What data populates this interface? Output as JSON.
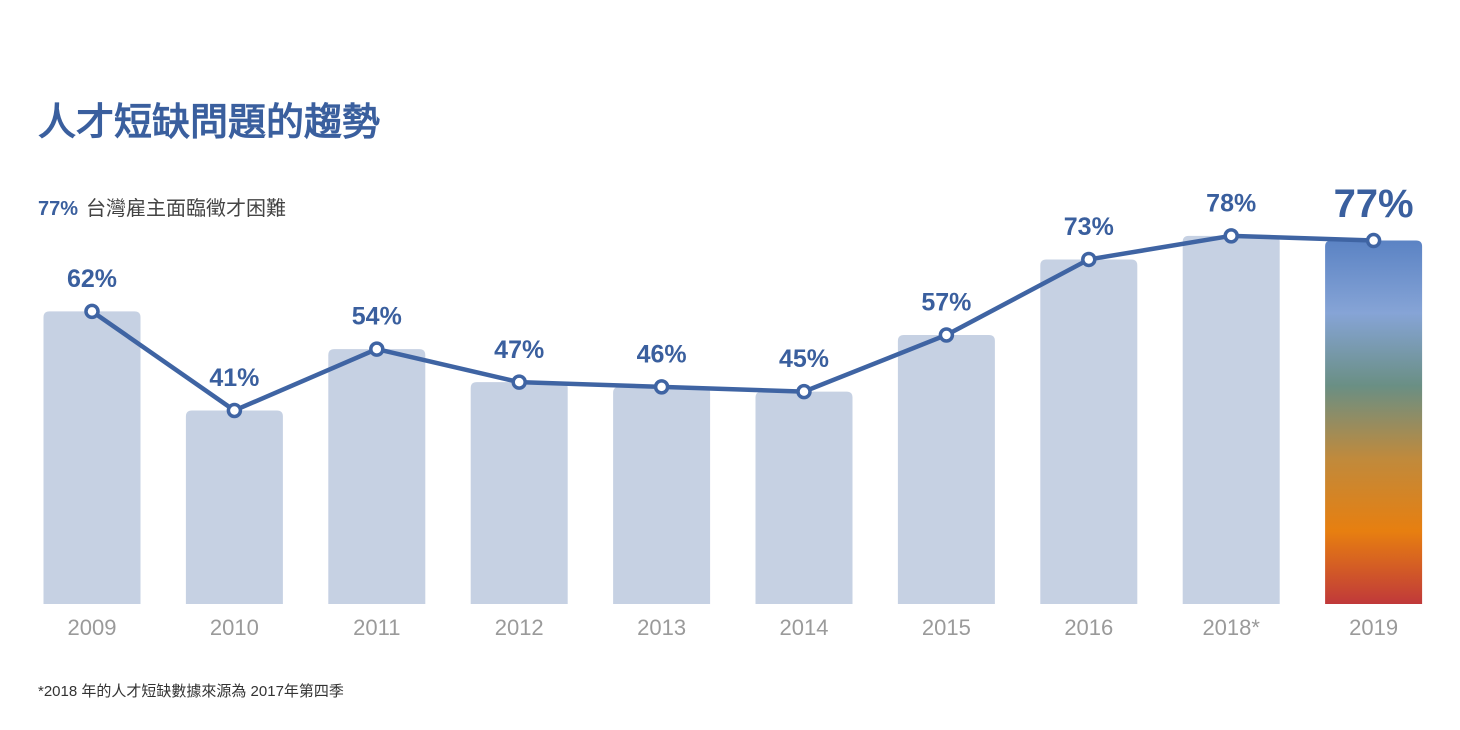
{
  "chart_data": {
    "type": "bar-line",
    "title": "人才短缺問題的趨勢",
    "subtitle_highlight": "77%",
    "subtitle": "台灣雇主面臨徵才困難",
    "footnote": "*2018 年的人才短缺數據來源為 2017年第四季",
    "categories": [
      "2009",
      "2010",
      "2011",
      "2012",
      "2013",
      "2014",
      "2015",
      "2016",
      "2018*",
      "2019"
    ],
    "values": [
      62,
      41,
      54,
      47,
      46,
      45,
      57,
      73,
      78,
      77
    ],
    "value_labels": [
      "62%",
      "41%",
      "54%",
      "47%",
      "46%",
      "45%",
      "57%",
      "73%",
      "78%",
      "77%"
    ],
    "bar_color": "#c6d1e3",
    "line_color": "#3f64a3",
    "last_bar_gradient": [
      "#5b83c4",
      "#86a4d6",
      "#6a8f84",
      "#c08a3c",
      "#e77f10",
      "#c0393a"
    ]
  }
}
